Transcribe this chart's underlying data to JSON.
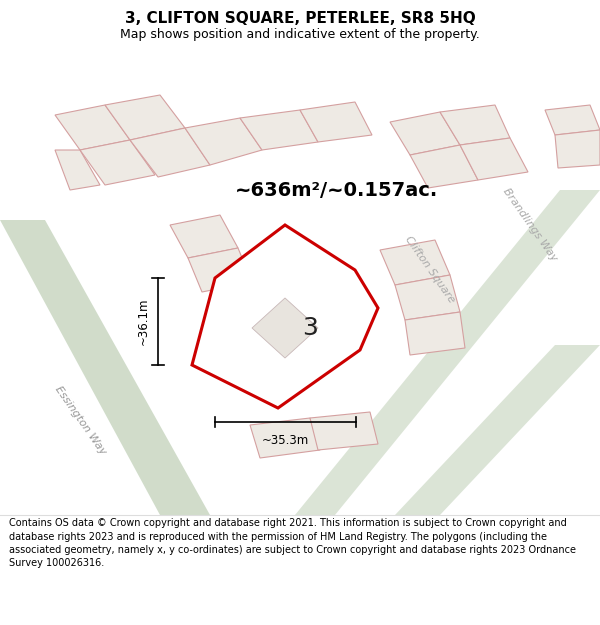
{
  "title": "3, CLIFTON SQUARE, PETERLEE, SR8 5HQ",
  "subtitle": "Map shows position and indicative extent of the property.",
  "footer": "Contains OS data © Crown copyright and database right 2021. This information is subject to Crown copyright and database rights 2023 and is reproduced with the permission of HM Land Registry. The polygons (including the associated geometry, namely x, y co-ordinates) are subject to Crown copyright and database rights 2023 Ordnance Survey 100026316.",
  "map_bg": "#f9f8f6",
  "road_green": "#ccd9c5",
  "plot_fill": "#ffffff",
  "plot_outline": "#cc0000",
  "block_fill": "#eeeae4",
  "block_edge": "#d4a0a0",
  "area_text": "~636m²/~0.157ac.",
  "label_3": "3",
  "dim_width": "~35.3m",
  "dim_height": "~36.1m",
  "road_label_essington": "Essington Way",
  "road_label_clifton": "Clifton Square",
  "road_label_brandlings": "Brandlings Way",
  "title_fontsize": 11,
  "subtitle_fontsize": 9,
  "footer_fontsize": 7
}
